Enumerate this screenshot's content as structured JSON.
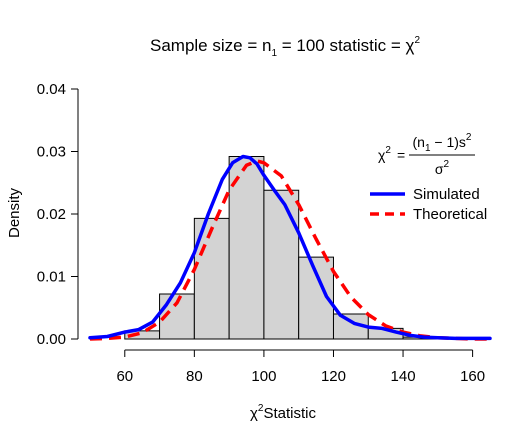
{
  "chart_data": {
    "type": "histogram",
    "title": {
      "main": "Sample size = n",
      "sub1": "1",
      "mid": " = 100 statistic = χ",
      "sup": "2"
    },
    "xlabel": {
      "symbol": "χ",
      "sup": "2",
      "text": "Statistic"
    },
    "ylabel": "Density",
    "xlim": [
      50,
      165
    ],
    "ylim": [
      0,
      0.04
    ],
    "x_ticks": [
      {
        "value": 60,
        "label": "60"
      },
      {
        "value": 80,
        "label": "80"
      },
      {
        "value": 100,
        "label": "100"
      },
      {
        "value": 120,
        "label": "120"
      },
      {
        "value": 140,
        "label": "140"
      },
      {
        "value": 160,
        "label": "160"
      }
    ],
    "y_ticks": [
      {
        "value": 0,
        "label": "0.00"
      },
      {
        "value": 0.01,
        "label": "0.01"
      },
      {
        "value": 0.02,
        "label": "0.02"
      },
      {
        "value": 0.03,
        "label": "0.03"
      },
      {
        "value": 0.04,
        "label": "0.04"
      }
    ],
    "bins": [
      {
        "x0": 60,
        "x1": 70,
        "density": 0.0013
      },
      {
        "x0": 70,
        "x1": 80,
        "density": 0.0072
      },
      {
        "x0": 80,
        "x1": 90,
        "density": 0.0193
      },
      {
        "x0": 90,
        "x1": 100,
        "density": 0.0292
      },
      {
        "x0": 100,
        "x1": 110,
        "density": 0.0238
      },
      {
        "x0": 110,
        "x1": 120,
        "density": 0.0131
      },
      {
        "x0": 120,
        "x1": 130,
        "density": 0.004
      },
      {
        "x0": 130,
        "x1": 140,
        "density": 0.0017
      },
      {
        "x0": 140,
        "x1": 150,
        "density": 0.0003
      }
    ],
    "series": [
      {
        "name": "Simulated",
        "color": "#0000ff",
        "dash": "solid",
        "x": [
          50,
          55,
          60,
          64,
          68,
          72,
          76,
          80,
          84,
          88,
          91,
          94,
          96,
          98,
          100,
          103,
          106,
          110,
          114,
          118,
          122,
          126,
          130,
          134,
          138,
          142,
          146,
          150,
          155,
          160,
          165
        ],
        "y": [
          0.0002,
          0.0004,
          0.0011,
          0.0015,
          0.0027,
          0.0055,
          0.009,
          0.0138,
          0.02,
          0.0255,
          0.0282,
          0.0292,
          0.029,
          0.028,
          0.0262,
          0.0238,
          0.0215,
          0.017,
          0.0118,
          0.0068,
          0.0038,
          0.0025,
          0.0019,
          0.0017,
          0.0011,
          0.0006,
          0.0003,
          0.0002,
          0.0001,
          0.0001,
          0.0001
        ]
      },
      {
        "name": "Theoretical",
        "color": "#ff0000",
        "dash": "dashed",
        "x": [
          50,
          55,
          60,
          65,
          70,
          75,
          80,
          85,
          90,
          95,
          98,
          100,
          105,
          110,
          115,
          120,
          125,
          130,
          135,
          140,
          145,
          150,
          155,
          160,
          165
        ],
        "y": [
          0.0,
          0.0001,
          0.0003,
          0.001,
          0.0027,
          0.0058,
          0.0111,
          0.0176,
          0.0238,
          0.0278,
          0.0285,
          0.0282,
          0.0261,
          0.0215,
          0.016,
          0.0108,
          0.0067,
          0.0039,
          0.0021,
          0.0011,
          0.0005,
          0.0002,
          0.0001,
          0.0,
          0.0
        ]
      }
    ],
    "legend_position": "top-right",
    "formula": {
      "lhs": "χ",
      "lhs_sup": "2",
      "eq": "=",
      "num_open": "(n",
      "num_sub": "1",
      "num_mid": " − 1)s",
      "num_sup": "2",
      "den": "σ",
      "den_sup": "2"
    },
    "colors": {
      "bar_fill": "#d3d3d3",
      "bar_stroke": "#000000"
    }
  }
}
